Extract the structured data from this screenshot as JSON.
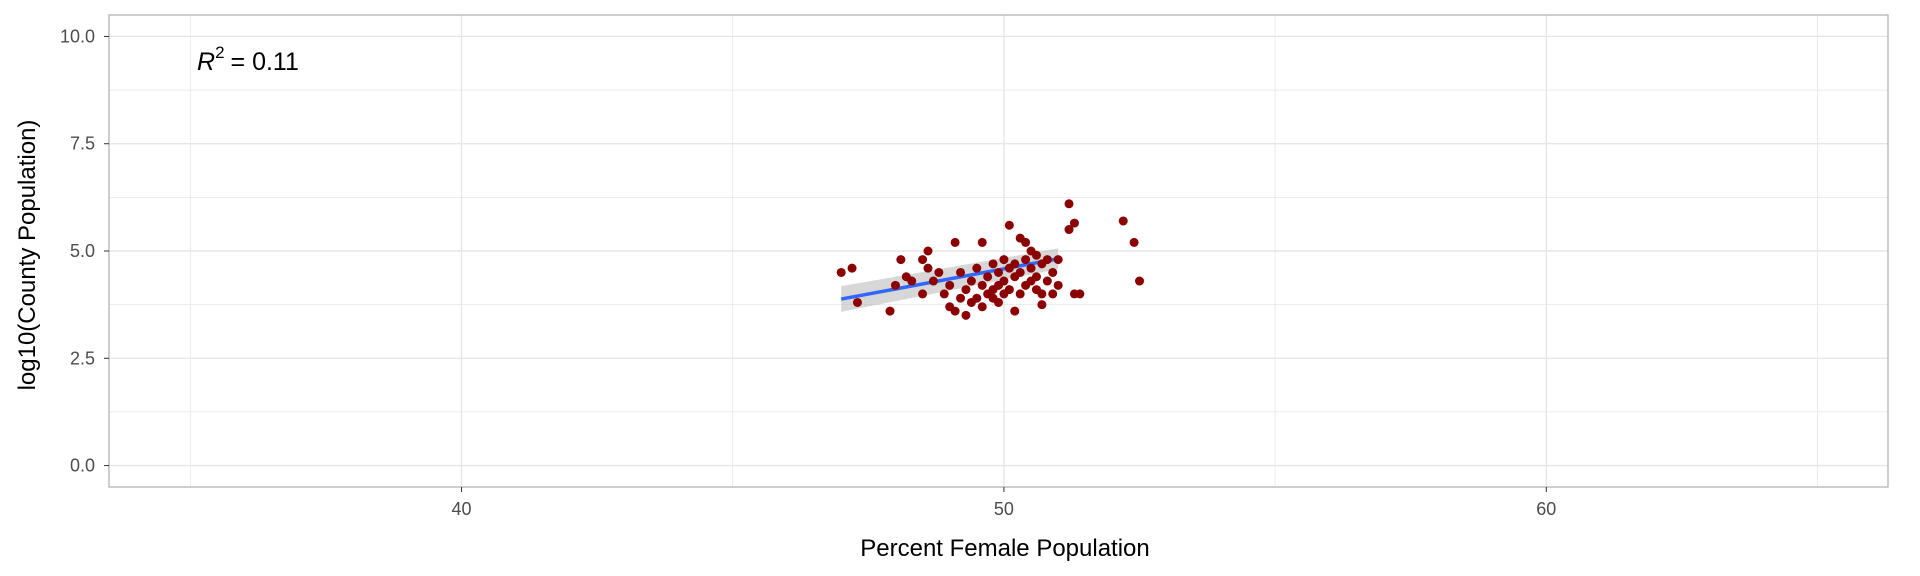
{
  "chart_data": {
    "type": "scatter",
    "title": "",
    "xlabel": "Percent Female Population",
    "ylabel": "log10(County Population)",
    "xlim": [
      33.5,
      66.3
    ],
    "ylim": [
      -0.5,
      10.5
    ],
    "x_ticks": [
      40,
      50,
      60
    ],
    "x_tick_labels": [
      "40",
      "50",
      "60"
    ],
    "y_ticks": [
      0,
      2.5,
      5,
      7.5,
      10
    ],
    "y_tick_labels": [
      "0.0",
      "2.5",
      "5.0",
      "7.5",
      "10.0"
    ],
    "grid": true,
    "annotation": {
      "r2_symbol": "R",
      "r2_exponent": "2",
      "r2_text": "= 0.11"
    },
    "colors": {
      "points": "#8B0000",
      "fit_line": "#3366FF",
      "ribbon": "#bdbdbd",
      "grid": "#e6e6e6",
      "panel_border": "#b3b3b3"
    },
    "fit": {
      "x": [
        47.0,
        51.0
      ],
      "y": [
        3.88,
        4.82
      ],
      "ci_lower": [
        3.58,
        4.58
      ],
      "ci_upper": [
        4.18,
        5.06
      ]
    },
    "points": [
      [
        47.0,
        4.5
      ],
      [
        47.2,
        4.6
      ],
      [
        47.3,
        3.8
      ],
      [
        47.9,
        3.6
      ],
      [
        48.0,
        4.2
      ],
      [
        48.1,
        4.8
      ],
      [
        48.2,
        4.4
      ],
      [
        48.3,
        4.3
      ],
      [
        48.5,
        4.0
      ],
      [
        48.5,
        4.8
      ],
      [
        48.6,
        5.0
      ],
      [
        48.6,
        4.6
      ],
      [
        48.7,
        4.3
      ],
      [
        48.8,
        4.5
      ],
      [
        48.9,
        4.0
      ],
      [
        49.0,
        4.2
      ],
      [
        49.0,
        3.7
      ],
      [
        49.1,
        3.6
      ],
      [
        49.1,
        5.2
      ],
      [
        49.2,
        4.5
      ],
      [
        49.2,
        3.9
      ],
      [
        49.3,
        4.1
      ],
      [
        49.3,
        3.5
      ],
      [
        49.4,
        4.3
      ],
      [
        49.4,
        3.8
      ],
      [
        49.5,
        4.6
      ],
      [
        49.5,
        3.9
      ],
      [
        49.6,
        5.2
      ],
      [
        49.6,
        4.2
      ],
      [
        49.6,
        3.7
      ],
      [
        49.7,
        4.4
      ],
      [
        49.7,
        4.0
      ],
      [
        49.8,
        4.7
      ],
      [
        49.8,
        4.1
      ],
      [
        49.8,
        3.9
      ],
      [
        49.9,
        4.5
      ],
      [
        49.9,
        3.8
      ],
      [
        49.9,
        4.2
      ],
      [
        50.0,
        4.8
      ],
      [
        50.0,
        4.3
      ],
      [
        50.0,
        4.0
      ],
      [
        50.1,
        5.6
      ],
      [
        50.1,
        4.6
      ],
      [
        50.1,
        4.1
      ],
      [
        50.2,
        4.4
      ],
      [
        50.2,
        4.7
      ],
      [
        50.2,
        3.6
      ],
      [
        50.3,
        5.3
      ],
      [
        50.3,
        4.0
      ],
      [
        50.3,
        4.5
      ],
      [
        50.4,
        5.2
      ],
      [
        50.4,
        4.8
      ],
      [
        50.4,
        4.2
      ],
      [
        50.5,
        5.0
      ],
      [
        50.5,
        4.3
      ],
      [
        50.5,
        4.6
      ],
      [
        50.6,
        4.1
      ],
      [
        50.6,
        4.9
      ],
      [
        50.6,
        4.4
      ],
      [
        50.7,
        4.0
      ],
      [
        50.7,
        4.7
      ],
      [
        50.7,
        3.75
      ],
      [
        50.8,
        4.8
      ],
      [
        50.8,
        4.3
      ],
      [
        50.9,
        4.5
      ],
      [
        50.9,
        4.0
      ],
      [
        51.0,
        4.2
      ],
      [
        51.0,
        4.8
      ],
      [
        51.2,
        5.5
      ],
      [
        51.2,
        6.1
      ],
      [
        51.3,
        5.65
      ],
      [
        51.3,
        4.0
      ],
      [
        51.4,
        4.0
      ],
      [
        52.2,
        5.7
      ],
      [
        52.4,
        5.2
      ],
      [
        52.5,
        4.3
      ]
    ]
  }
}
